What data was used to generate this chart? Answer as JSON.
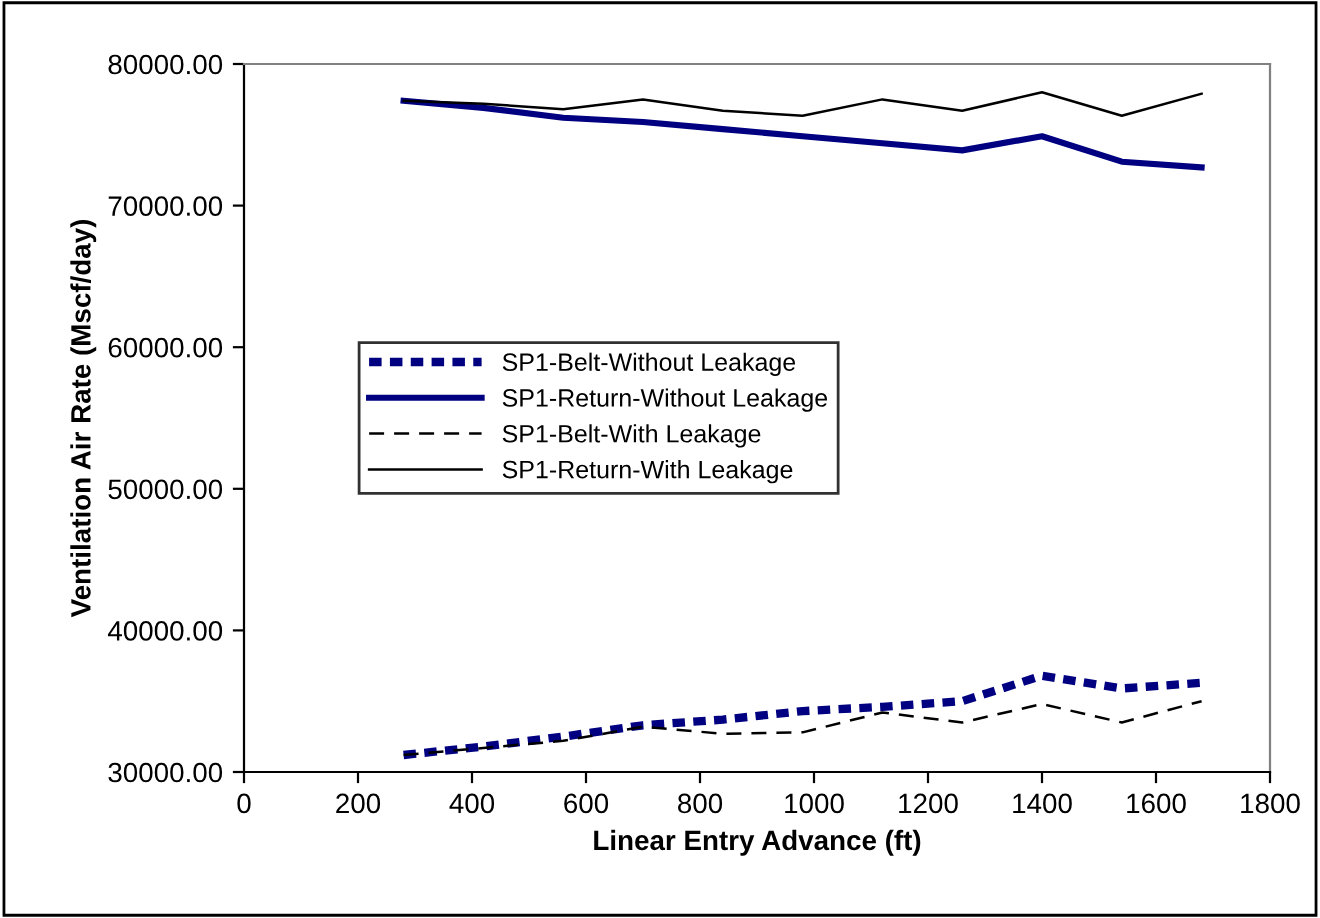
{
  "chart_data": {
    "type": "line",
    "xlabel": "Linear Entry Advance (ft)",
    "ylabel": "Ventilation Air Rate (Mscf/day)",
    "x": [
      280,
      420,
      560,
      700,
      840,
      980,
      1120,
      1260,
      1400,
      1540,
      1680
    ],
    "series": [
      {
        "name": "SP1-Belt-Without Leakage",
        "color": "#000080",
        "line_style": "dotted",
        "values": [
          31200,
          31800,
          32500,
          33300,
          33700,
          34300,
          34600,
          35000,
          36800,
          35900,
          36300
        ]
      },
      {
        "name": "SP1-Return-Without Leakage",
        "color": "#000080",
        "line_style": "solid",
        "values": [
          77400,
          76900,
          76200,
          75900,
          75400,
          74900,
          74400,
          73900,
          74900,
          73100,
          72700
        ]
      },
      {
        "name": "SP1-Belt-With Leakage",
        "color": "#000000",
        "line_style": "dashed",
        "values": [
          31200,
          31700,
          32200,
          33200,
          32700,
          32800,
          34200,
          33500,
          34800,
          33500,
          35000
        ]
      },
      {
        "name": "SP1-Return-With Leakage",
        "color": "#000000",
        "line_style": "solid",
        "values": [
          77400,
          77200,
          76800,
          77500,
          76700,
          76350,
          77500,
          76700,
          78000,
          76350,
          77900
        ]
      }
    ],
    "xlim": [
      0,
      1800
    ],
    "xticks": [
      0,
      200,
      400,
      600,
      800,
      1000,
      1200,
      1400,
      1600,
      1800
    ],
    "ylim": [
      30000,
      80000
    ],
    "yticks": [
      {
        "value": 30000,
        "label": "30000.00"
      },
      {
        "value": 40000,
        "label": "40000.00"
      },
      {
        "value": 50000,
        "label": "50000.00"
      },
      {
        "value": 60000,
        "label": "60000.00"
      },
      {
        "value": 70000,
        "label": "70000.00"
      },
      {
        "value": 80000,
        "label": "80000.00"
      }
    ],
    "grid": false,
    "legend": "left",
    "marker": "none"
  }
}
